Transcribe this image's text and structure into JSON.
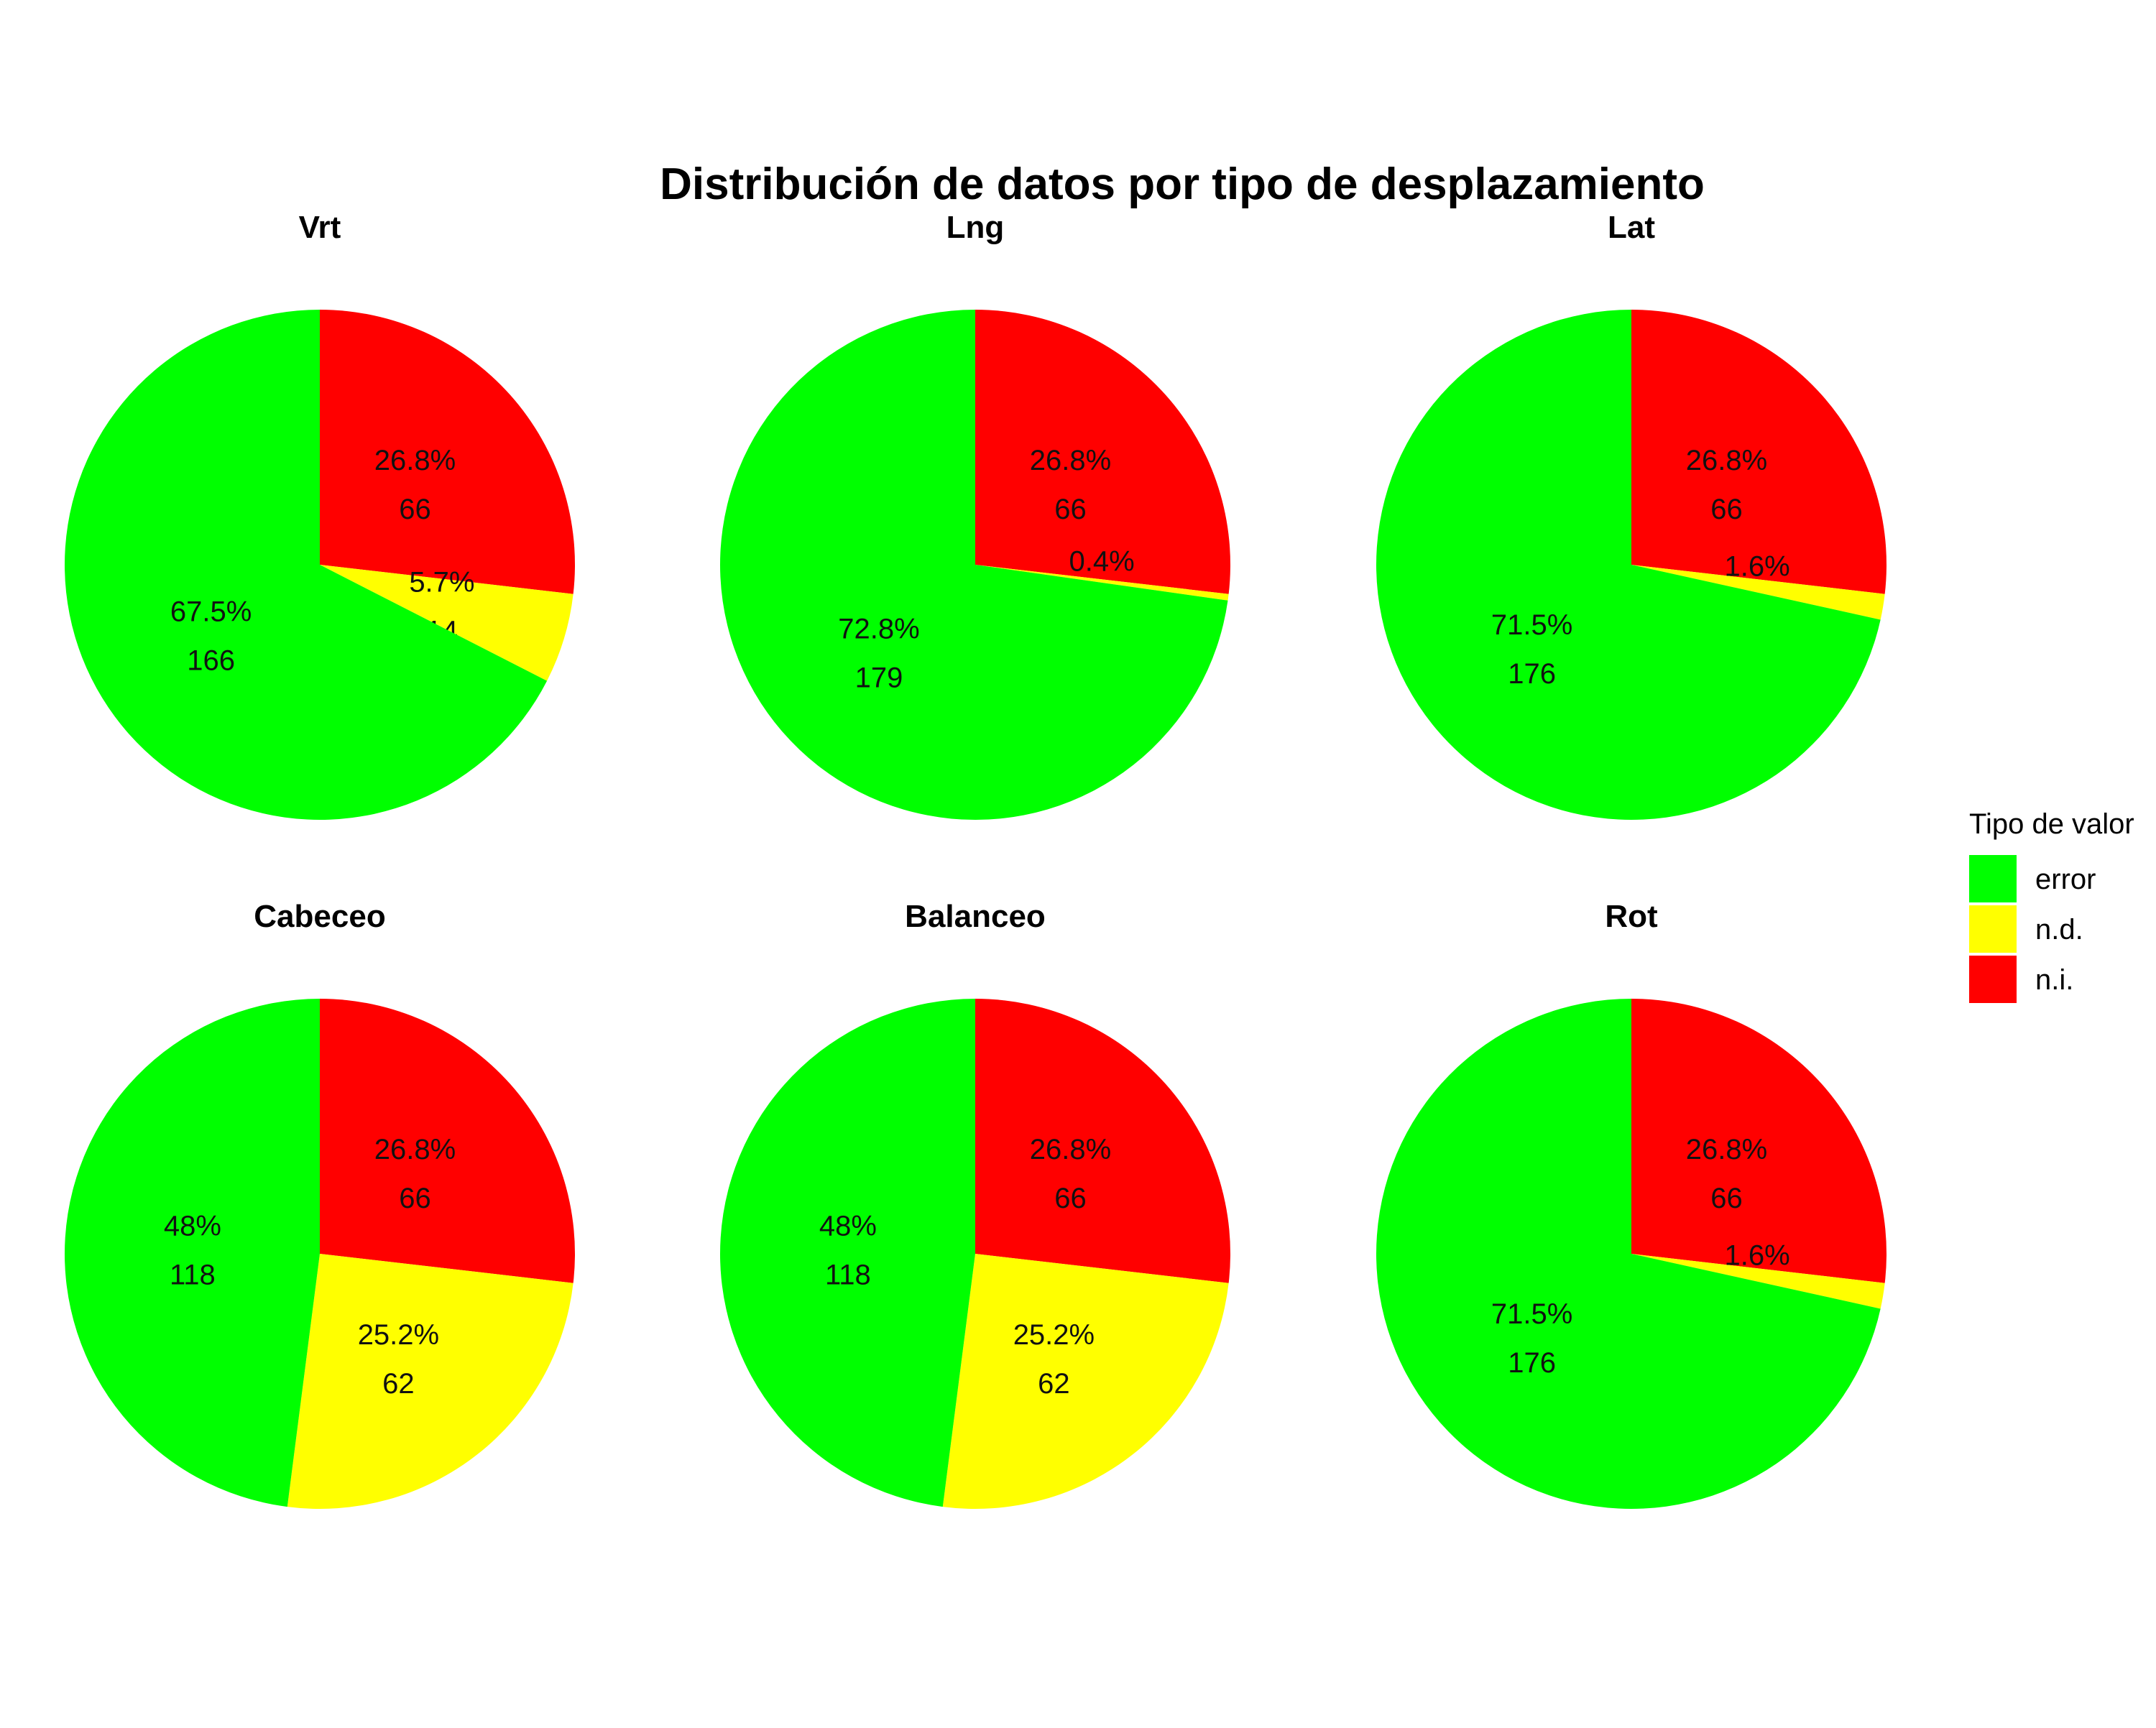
{
  "title": "Distribución de datos por tipo de desplazamiento",
  "colors": {
    "error": "#00FF00",
    "n.d.": "#FFFF00",
    "n.i.": "#FF0000"
  },
  "legend": {
    "title": "Tipo de valor",
    "placement": "right",
    "items": [
      "error",
      "n.d.",
      "n.i."
    ]
  },
  "chart_data": [
    {
      "type": "pie",
      "title": "Vrt",
      "slices": [
        {
          "name": "n.i.",
          "value": 66,
          "percent": "26.8%"
        },
        {
          "name": "n.d.",
          "value": 14,
          "percent": "5.7%"
        },
        {
          "name": "error",
          "value": 166,
          "percent": "67.5%"
        }
      ]
    },
    {
      "type": "pie",
      "title": "Lng",
      "slices": [
        {
          "name": "n.i.",
          "value": 66,
          "percent": "26.8%"
        },
        {
          "name": "n.d.",
          "value": 1,
          "percent": "0.4%"
        },
        {
          "name": "error",
          "value": 179,
          "percent": "72.8%"
        }
      ]
    },
    {
      "type": "pie",
      "title": "Lat",
      "slices": [
        {
          "name": "n.i.",
          "value": 66,
          "percent": "26.8%"
        },
        {
          "name": "n.d.",
          "value": 4,
          "percent": "1.6%"
        },
        {
          "name": "error",
          "value": 176,
          "percent": "71.5%"
        }
      ]
    },
    {
      "type": "pie",
      "title": "Cabeceo",
      "slices": [
        {
          "name": "n.i.",
          "value": 66,
          "percent": "26.8%"
        },
        {
          "name": "n.d.",
          "value": 62,
          "percent": "25.2%"
        },
        {
          "name": "error",
          "value": 118,
          "percent": "48%"
        }
      ]
    },
    {
      "type": "pie",
      "title": "Balanceo",
      "slices": [
        {
          "name": "n.i.",
          "value": 66,
          "percent": "26.8%"
        },
        {
          "name": "n.d.",
          "value": 62,
          "percent": "25.2%"
        },
        {
          "name": "error",
          "value": 118,
          "percent": "48%"
        }
      ]
    },
    {
      "type": "pie",
      "title": "Rot",
      "slices": [
        {
          "name": "n.i.",
          "value": 66,
          "percent": "26.8%"
        },
        {
          "name": "n.d.",
          "value": 4,
          "percent": "1.6%"
        },
        {
          "name": "error",
          "value": 176,
          "percent": "71.5%"
        }
      ]
    }
  ]
}
